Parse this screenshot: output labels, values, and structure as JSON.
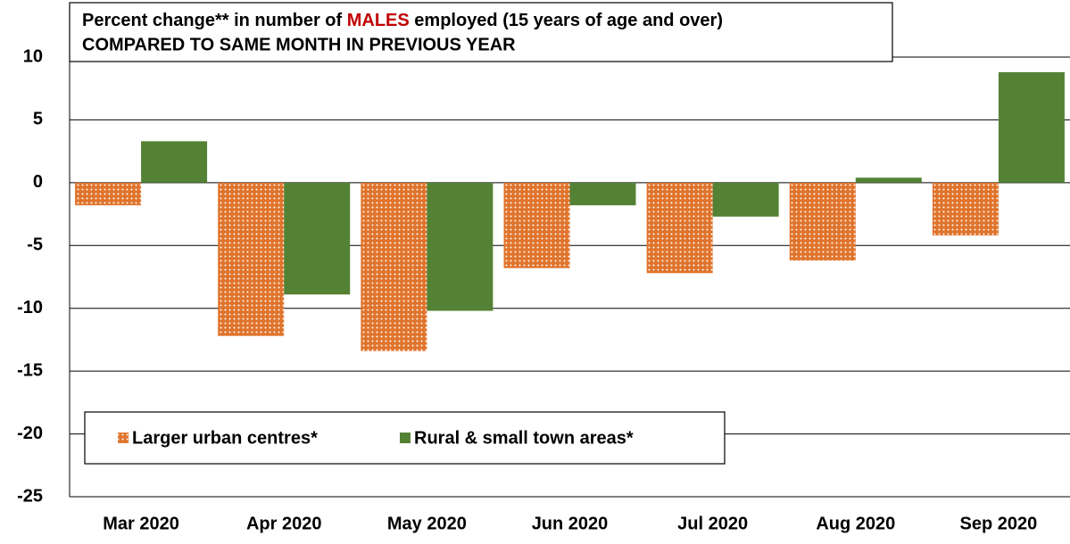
{
  "chart_data": {
    "type": "bar",
    "title_parts": [
      "Percent change** in number of ",
      "MALES",
      " employed (15 years of age and over)"
    ],
    "title_colors": [
      "#000000",
      "#c00000",
      "#000000"
    ],
    "subtitle": "COMPARED TO SAME MONTH IN PREVIOUS YEAR",
    "subtitle_color": "#4472c4",
    "categories": [
      "Mar 2020",
      "Apr 2020",
      "May 2020",
      "Jun 2020",
      "Jul 2020",
      "Aug 2020",
      "Sep 2020"
    ],
    "series": [
      {
        "name": "Larger urban centres*",
        "color": "#e0742c",
        "pattern": "dots",
        "values": [
          -1.8,
          -12.2,
          -13.4,
          -6.8,
          -7.2,
          -6.2,
          -4.2
        ]
      },
      {
        "name": "Rural & small town areas*",
        "color": "#548235",
        "values": [
          3.3,
          -8.9,
          -10.2,
          -1.8,
          -2.7,
          0.4,
          8.8
        ]
      }
    ],
    "ylim": [
      -25,
      10
    ],
    "yticks": [
      -25,
      -20,
      -15,
      -10,
      -5,
      0,
      5,
      10
    ],
    "grid": true,
    "legend": "lower left"
  }
}
